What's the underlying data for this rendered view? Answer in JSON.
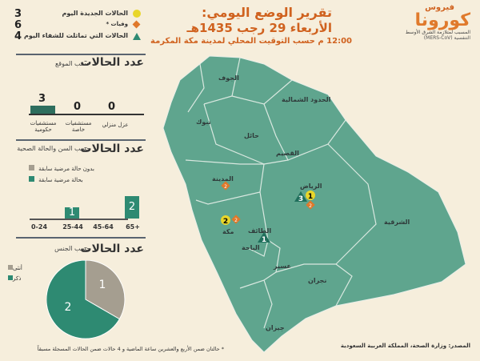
{
  "header": {
    "title": "تقرير الوضع اليومي:",
    "date": "الأربعاء 29 رجب 1435هـ",
    "time_note": "12:00 م حسب التوقيت المحلي لمدينة مكة المكرمة"
  },
  "logo": {
    "line1": "فيروس",
    "line2": "كورونا",
    "line3": "المسبب لمتلازمة الشرق الأوسط",
    "line4": "التنفسية (MERS-CoV)"
  },
  "legend": [
    {
      "label": "الحالات الجديدة اليوم",
      "value": "3",
      "icon": "yellow-circle",
      "color": "#e8d62a"
    },
    {
      "label": "وفيات *",
      "value": "6",
      "icon": "orange-diamond",
      "color": "#e0782a"
    },
    {
      "label": "الحالات التي تماثلت للشفاء اليوم",
      "value": "4",
      "icon": "green-triangle",
      "color": "#2e8a72"
    }
  ],
  "by_location": {
    "title": "عدد الحالات",
    "subtitle": "حسب الموقع",
    "bars": [
      {
        "label": "مستشفيات حكومية",
        "value": 3
      },
      {
        "label": "مستشفيات خاصة",
        "value": 0
      },
      {
        "label": "عزل منزلي",
        "value": 0
      }
    ]
  },
  "by_age": {
    "title": "عدد الحالات",
    "subtitle": "حسب السن والحالة الصحية",
    "legend": [
      {
        "label": "بدون حالة مرضية سابقة",
        "color": "#a59e90"
      },
      {
        "label": "بحالة مرضية سابقة",
        "color": "#2e8a72"
      }
    ],
    "categories": [
      "0-24",
      "25-44",
      "45-64",
      "65+"
    ],
    "values": [
      0,
      1,
      0,
      2
    ]
  },
  "by_gender": {
    "title": "عدد الحالات",
    "subtitle": "حسب الجنس",
    "legend": [
      {
        "label": "أنثى",
        "color": "#a59e90"
      },
      {
        "label": "ذكر",
        "color": "#2e8a72"
      }
    ],
    "values": {
      "female": 1,
      "male": 2
    }
  },
  "footnote": "* حالتان ضمن الأربع والعشرين ساعة الماضية و 4 حالات ضمن الحالات المسجلة مسبقاً",
  "source": "المصدر: وزارة الصحة، المملكة العربية السعودية",
  "map": {
    "regions": [
      "الجوف",
      "الحدود الشمالية",
      "تبوك",
      "حائل",
      "القصيم",
      "المدينة",
      "الرياض",
      "الشرقية",
      "مكة",
      "الطائف",
      "الباحة",
      "عسير",
      "نجران",
      "جيزان"
    ],
    "markers": {
      "riyadh_new": "1",
      "riyadh_recovered": "3",
      "riyadh_deaths": "2",
      "madinah_deaths": "2",
      "makkah_new": "2",
      "makkah_deaths": "2",
      "taif_recovered": "1"
    }
  }
}
